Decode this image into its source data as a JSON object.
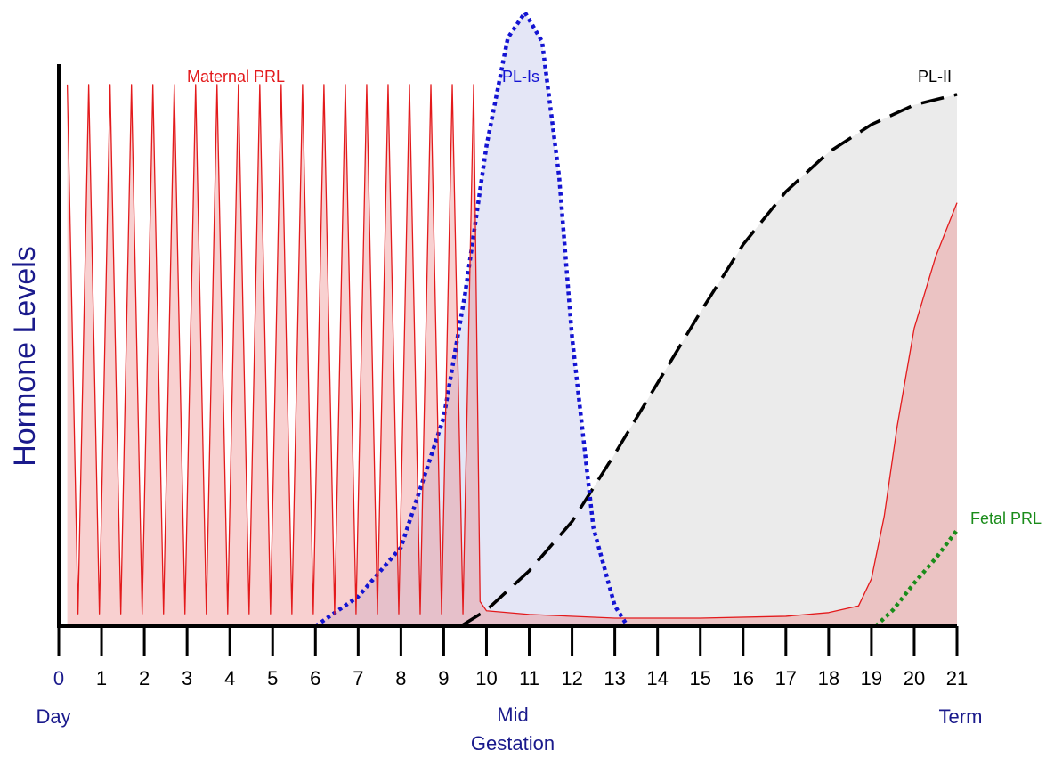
{
  "chart_data": {
    "type": "line",
    "y_label": "Hormone Levels",
    "start_label": "Day",
    "mid_label": "Mid Gestation",
    "end_label": "Term",
    "xlim": [
      0,
      21
    ],
    "ylim": [
      0,
      100
    ],
    "xticks": [
      0,
      1,
      2,
      3,
      4,
      5,
      6,
      7,
      8,
      9,
      10,
      11,
      12,
      13,
      14,
      15,
      16,
      17,
      18,
      19,
      20,
      21
    ],
    "series": [
      {
        "name": "PL-II",
        "color": "#000000",
        "fill": "#ebebeb",
        "dash": "dashed",
        "x": [
          9.4,
          10,
          11,
          12,
          13,
          14,
          15,
          16,
          17,
          18,
          19,
          20,
          21
        ],
        "values": [
          0,
          2.6,
          9,
          17,
          28,
          39.5,
          51,
          62,
          70.6,
          77,
          81.5,
          84.7,
          86.4
        ]
      },
      {
        "name": "PL-Is",
        "color": "#1414d2",
        "fill": "#e4e6f6",
        "dash": "dotted",
        "x": [
          6,
          7,
          8,
          9,
          9.5,
          10,
          10.5,
          10.9,
          11.3,
          11.7,
          12,
          12.5,
          13,
          13.3
        ],
        "values": [
          0,
          4.8,
          12.8,
          33.9,
          54,
          78,
          95.6,
          99.7,
          95,
          73,
          47,
          16,
          3.3,
          0
        ]
      },
      {
        "name": "Maternal PRL",
        "color": "#e31a1c",
        "fill": "rgba(236,120,120,0.35)",
        "dash": "solid",
        "x": [
          0.2,
          0.45,
          0.7,
          0.95,
          1.2,
          1.45,
          1.7,
          1.95,
          2.2,
          2.45,
          2.7,
          2.95,
          3.2,
          3.45,
          3.7,
          3.95,
          4.2,
          4.45,
          4.7,
          4.95,
          5.2,
          5.45,
          5.7,
          5.95,
          6.2,
          6.45,
          6.7,
          6.95,
          7.2,
          7.45,
          7.7,
          7.95,
          8.2,
          8.45,
          8.7,
          8.95,
          9.2,
          9.45,
          9.7,
          9.85,
          10,
          11,
          13,
          15,
          17,
          18,
          18.7,
          19,
          19.3,
          19.6,
          20,
          20.5,
          21
        ],
        "values": [
          88,
          2,
          88,
          2,
          88,
          2,
          88,
          2,
          88,
          2,
          88,
          2,
          88,
          2,
          88,
          2,
          88,
          2,
          88,
          2,
          88,
          2,
          88,
          2,
          88,
          2,
          88,
          2,
          88,
          2,
          88,
          2,
          88,
          2,
          88,
          2,
          88,
          2,
          88,
          4,
          2.5,
          1.9,
          1.3,
          1.3,
          1.6,
          2.2,
          3.3,
          7.7,
          17.9,
          32.4,
          48.4,
          60,
          68.8
        ]
      },
      {
        "name": "Fetal PRL",
        "color": "#1a8c1a",
        "fill": "none",
        "dash": "dotted",
        "x": [
          19.1,
          19.5,
          20,
          20.5,
          21
        ],
        "values": [
          0,
          2.6,
          7,
          11,
          15.6
        ]
      }
    ]
  }
}
